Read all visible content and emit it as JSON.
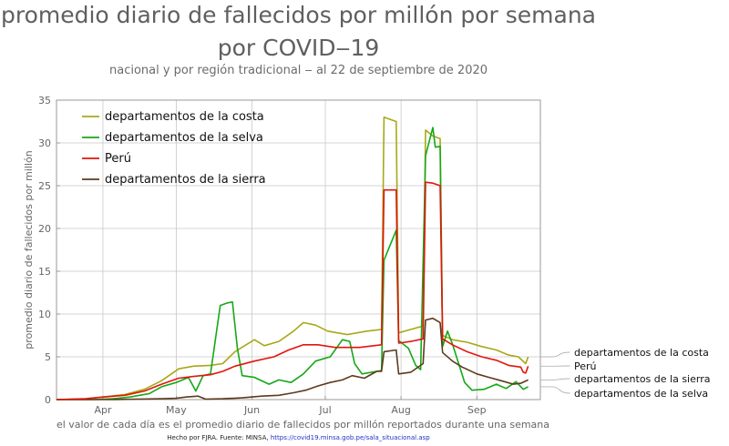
{
  "chart_data": {
    "type": "line",
    "title": "promedio diario de fallecidos por millón por semana",
    "title_line2": "por COVID‒19",
    "subtitle": "nacional y por región tradicional ‒ al 22 de septiembre de 2020",
    "ylabel": "promedio diario de fallecidos por millón",
    "xlabel": "el valor de cada día es el promedio diario de fallecidos por millón reportados durante una semana",
    "credit_text": "Hecho por FJRA. Fuente: MINSA,",
    "credit_url": "https://covid19.minsa.gob.pe/sala_situacional.asp",
    "ylim": [
      0,
      35
    ],
    "yticks": [
      "0",
      "5",
      "10",
      "15",
      "20",
      "25",
      "30",
      "35"
    ],
    "xlim": [
      "2020-03-13",
      "2020-09-27"
    ],
    "xticks": [
      {
        "label": "Apr",
        "date": "2020-04-01"
      },
      {
        "label": "May",
        "date": "2020-05-01"
      },
      {
        "label": "Jun",
        "date": "2020-06-01"
      },
      {
        "label": "Jul",
        "date": "2020-07-01"
      },
      {
        "label": "Aug",
        "date": "2020-08-01"
      },
      {
        "label": "Sep",
        "date": "2020-09-01"
      }
    ],
    "grid": true,
    "legend_position": "top-left",
    "series": [
      {
        "name": "departamentos de la costa",
        "color": "#a8a818",
        "end_label": "departamentos de la costa",
        "points": [
          [
            "2020-03-13",
            0
          ],
          [
            "2020-03-25",
            0.1
          ],
          [
            "2020-04-01",
            0.3
          ],
          [
            "2020-04-10",
            0.6
          ],
          [
            "2020-04-18",
            1.2
          ],
          [
            "2020-04-25",
            2.2
          ],
          [
            "2020-05-02",
            3.6
          ],
          [
            "2020-05-08",
            3.9
          ],
          [
            "2020-05-15",
            4.0
          ],
          [
            "2020-05-20",
            4.2
          ],
          [
            "2020-05-25",
            5.6
          ],
          [
            "2020-06-02",
            7.0
          ],
          [
            "2020-06-06",
            6.3
          ],
          [
            "2020-06-12",
            6.8
          ],
          [
            "2020-06-18",
            8.0
          ],
          [
            "2020-06-22",
            9.0
          ],
          [
            "2020-06-27",
            8.7
          ],
          [
            "2020-07-02",
            8.0
          ],
          [
            "2020-07-10",
            7.6
          ],
          [
            "2020-07-18",
            8.0
          ],
          [
            "2020-07-24",
            8.2
          ],
          [
            "2020-07-25",
            33.0
          ],
          [
            "2020-07-30",
            32.5
          ],
          [
            "2020-07-31",
            7.8
          ],
          [
            "2020-08-05",
            8.2
          ],
          [
            "2020-08-10",
            8.6
          ],
          [
            "2020-08-11",
            31.5
          ],
          [
            "2020-08-14",
            30.8
          ],
          [
            "2020-08-17",
            30.5
          ],
          [
            "2020-08-18",
            7.5
          ],
          [
            "2020-08-22",
            7.0
          ],
          [
            "2020-08-28",
            6.7
          ],
          [
            "2020-09-03",
            6.2
          ],
          [
            "2020-09-09",
            5.8
          ],
          [
            "2020-09-14",
            5.2
          ],
          [
            "2020-09-18",
            5.0
          ],
          [
            "2020-09-21",
            4.2
          ],
          [
            "2020-09-22",
            5.0
          ]
        ]
      },
      {
        "name": "departamentos de la selva",
        "color": "#16a816",
        "end_label": "departamentos de la selva",
        "points": [
          [
            "2020-03-13",
            0
          ],
          [
            "2020-03-28",
            0
          ],
          [
            "2020-04-05",
            0.1
          ],
          [
            "2020-04-12",
            0.3
          ],
          [
            "2020-04-20",
            0.7
          ],
          [
            "2020-04-25",
            1.5
          ],
          [
            "2020-05-01",
            2.0
          ],
          [
            "2020-05-06",
            2.6
          ],
          [
            "2020-05-09",
            1.0
          ],
          [
            "2020-05-12",
            2.8
          ],
          [
            "2020-05-15",
            3.0
          ],
          [
            "2020-05-19",
            11.0
          ],
          [
            "2020-05-22",
            11.3
          ],
          [
            "2020-05-24",
            11.4
          ],
          [
            "2020-05-26",
            6.0
          ],
          [
            "2020-05-28",
            2.8
          ],
          [
            "2020-06-02",
            2.6
          ],
          [
            "2020-06-08",
            1.8
          ],
          [
            "2020-06-12",
            2.3
          ],
          [
            "2020-06-17",
            2.0
          ],
          [
            "2020-06-22",
            3.0
          ],
          [
            "2020-06-27",
            4.5
          ],
          [
            "2020-07-03",
            5.0
          ],
          [
            "2020-07-08",
            7.0
          ],
          [
            "2020-07-11",
            6.8
          ],
          [
            "2020-07-13",
            4.2
          ],
          [
            "2020-07-16",
            3.0
          ],
          [
            "2020-07-22",
            3.3
          ],
          [
            "2020-07-24",
            3.4
          ],
          [
            "2020-07-25",
            16.3
          ],
          [
            "2020-07-30",
            19.8
          ],
          [
            "2020-07-31",
            6.9
          ],
          [
            "2020-08-04",
            6.0
          ],
          [
            "2020-08-07",
            4.0
          ],
          [
            "2020-08-09",
            3.5
          ],
          [
            "2020-08-11",
            28.5
          ],
          [
            "2020-08-14",
            31.8
          ],
          [
            "2020-08-15",
            29.5
          ],
          [
            "2020-08-17",
            29.6
          ],
          [
            "2020-08-18",
            6.2
          ],
          [
            "2020-08-20",
            8.0
          ],
          [
            "2020-08-22",
            6.5
          ],
          [
            "2020-08-27",
            2.0
          ],
          [
            "2020-08-30",
            1.1
          ],
          [
            "2020-09-04",
            1.2
          ],
          [
            "2020-09-09",
            1.8
          ],
          [
            "2020-09-13",
            1.3
          ],
          [
            "2020-09-17",
            2.1
          ],
          [
            "2020-09-20",
            1.2
          ],
          [
            "2020-09-22",
            1.5
          ]
        ]
      },
      {
        "name": "Perú",
        "color": "#e2150c",
        "end_label": "Perú",
        "points": [
          [
            "2020-03-13",
            0
          ],
          [
            "2020-03-25",
            0.1
          ],
          [
            "2020-04-01",
            0.3
          ],
          [
            "2020-04-10",
            0.5
          ],
          [
            "2020-04-18",
            1.0
          ],
          [
            "2020-04-25",
            1.8
          ],
          [
            "2020-05-02",
            2.5
          ],
          [
            "2020-05-08",
            2.7
          ],
          [
            "2020-05-15",
            2.9
          ],
          [
            "2020-05-20",
            3.3
          ],
          [
            "2020-05-25",
            3.9
          ],
          [
            "2020-06-02",
            4.5
          ],
          [
            "2020-06-10",
            5.0
          ],
          [
            "2020-06-16",
            5.8
          ],
          [
            "2020-06-22",
            6.4
          ],
          [
            "2020-06-28",
            6.4
          ],
          [
            "2020-07-05",
            6.1
          ],
          [
            "2020-07-15",
            6.1
          ],
          [
            "2020-07-24",
            6.4
          ],
          [
            "2020-07-25",
            24.5
          ],
          [
            "2020-07-30",
            24.5
          ],
          [
            "2020-07-31",
            6.6
          ],
          [
            "2020-08-05",
            6.8
          ],
          [
            "2020-08-10",
            7.1
          ],
          [
            "2020-08-11",
            25.4
          ],
          [
            "2020-08-14",
            25.3
          ],
          [
            "2020-08-17",
            25.0
          ],
          [
            "2020-08-18",
            7.1
          ],
          [
            "2020-08-22",
            6.4
          ],
          [
            "2020-08-28",
            5.6
          ],
          [
            "2020-09-03",
            5.0
          ],
          [
            "2020-09-09",
            4.6
          ],
          [
            "2020-09-14",
            4.0
          ],
          [
            "2020-09-19",
            3.8
          ],
          [
            "2020-09-20",
            3.2
          ],
          [
            "2020-09-21",
            3.1
          ],
          [
            "2020-09-22",
            3.9
          ]
        ]
      },
      {
        "name": "departamentos de la sierra",
        "color": "#5e3a1c",
        "end_label": "departamentos de la sierra",
        "points": [
          [
            "2020-03-13",
            0
          ],
          [
            "2020-04-05",
            0
          ],
          [
            "2020-04-15",
            0.05
          ],
          [
            "2020-04-25",
            0.1
          ],
          [
            "2020-05-01",
            0.15
          ],
          [
            "2020-05-05",
            0.3
          ],
          [
            "2020-05-10",
            0.4
          ],
          [
            "2020-05-13",
            0.05
          ],
          [
            "2020-05-20",
            0.1
          ],
          [
            "2020-05-28",
            0.2
          ],
          [
            "2020-06-05",
            0.4
          ],
          [
            "2020-06-12",
            0.5
          ],
          [
            "2020-06-18",
            0.8
          ],
          [
            "2020-06-23",
            1.1
          ],
          [
            "2020-06-28",
            1.6
          ],
          [
            "2020-07-03",
            2.0
          ],
          [
            "2020-07-08",
            2.3
          ],
          [
            "2020-07-12",
            2.8
          ],
          [
            "2020-07-17",
            2.5
          ],
          [
            "2020-07-22",
            3.3
          ],
          [
            "2020-07-24",
            3.3
          ],
          [
            "2020-07-25",
            5.6
          ],
          [
            "2020-07-30",
            5.8
          ],
          [
            "2020-07-31",
            3.0
          ],
          [
            "2020-08-05",
            3.2
          ],
          [
            "2020-08-10",
            4.2
          ],
          [
            "2020-08-11",
            9.3
          ],
          [
            "2020-08-14",
            9.5
          ],
          [
            "2020-08-17",
            9.0
          ],
          [
            "2020-08-18",
            5.5
          ],
          [
            "2020-08-22",
            4.5
          ],
          [
            "2020-08-26",
            3.8
          ],
          [
            "2020-09-01",
            3.0
          ],
          [
            "2020-09-06",
            2.6
          ],
          [
            "2020-09-11",
            2.2
          ],
          [
            "2020-09-16",
            1.8
          ],
          [
            "2020-09-19",
            1.9
          ],
          [
            "2020-09-22",
            2.3
          ]
        ]
      }
    ]
  }
}
